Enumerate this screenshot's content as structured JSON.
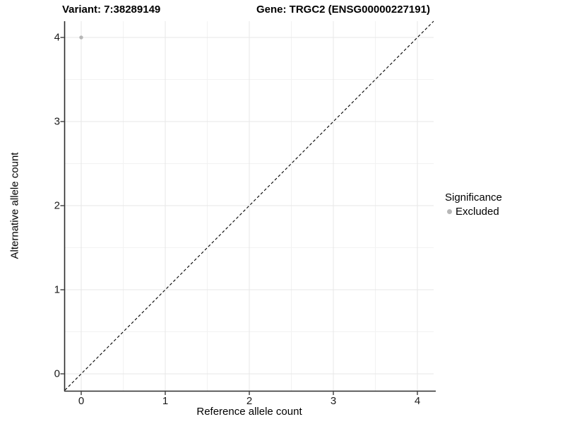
{
  "header": {
    "title_left": "Variant: 7:38289149",
    "title_right": "Gene: TRGC2 (ENSG00000227191)"
  },
  "chart_data": {
    "type": "scatter",
    "title_left": "Variant: 7:38289149",
    "title_right": "Gene: TRGC2 (ENSG00000227191)",
    "xlabel": "Reference allele count",
    "ylabel": "Alternative allele count",
    "xlim": [
      -0.2,
      4.2
    ],
    "ylim": [
      -0.2,
      4.2
    ],
    "x_ticks": [
      0,
      1,
      2,
      3,
      4
    ],
    "y_ticks": [
      0,
      1,
      2,
      3,
      4
    ],
    "grid": {
      "major": true,
      "minor": true
    },
    "series": [
      {
        "name": "Excluded",
        "color": "#b7b7b7",
        "points": [
          {
            "x": 0,
            "y": 4
          }
        ]
      }
    ],
    "reference_line": {
      "type": "identity",
      "slope": 1,
      "intercept": 0,
      "style": "dashed",
      "color": "#000000"
    },
    "legend": {
      "title": "Significance",
      "position": "right",
      "items": [
        {
          "label": "Excluded",
          "color": "#b7b7b7"
        }
      ]
    }
  },
  "colors": {
    "grid_major": "#e7e7e7",
    "grid_minor": "#f2f2f2",
    "axis_line": "#2b2b2b",
    "tick_mark": "#2b2b2b",
    "background": "#ffffff"
  }
}
